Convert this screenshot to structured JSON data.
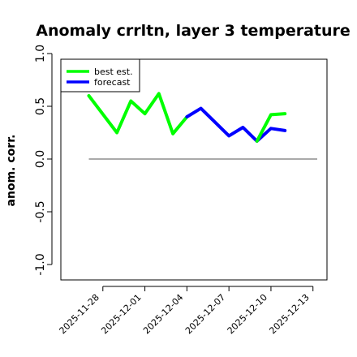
{
  "chart_data": {
    "type": "line",
    "title": "Anomaly crrltn, layer 3 temperature",
    "xlabel": "",
    "ylabel": "anom. corr.",
    "ylim": [
      -1.0,
      1.0
    ],
    "yticks": [
      "-1.0",
      "-0.5",
      "0.0",
      "0.5",
      "1.0"
    ],
    "xlim": [
      "2025-11-25",
      "2025-12-14"
    ],
    "xticks": [
      {
        "date": "2025-11-28",
        "label": "2025-11-28",
        "color": "#000000"
      },
      {
        "date": "2025-12-01",
        "label": "2025-12-01",
        "color": "#000000"
      },
      {
        "date": "2025-12-04",
        "label": "2025-12-04",
        "color": "#228B22"
      },
      {
        "date": "2025-12-07",
        "label": "2025-12-07",
        "color": "#000000"
      },
      {
        "date": "2025-12-10",
        "label": "2025-12-10",
        "color": "#000000"
      },
      {
        "date": "2025-12-13",
        "label": "2025-12-13",
        "color": "#000000"
      }
    ],
    "reference_line": 0.0,
    "legend": {
      "position": "top-left"
    },
    "series": [
      {
        "name": "best est.",
        "color": "#00ff00",
        "points": [
          {
            "x": "2025-11-27",
            "y": 0.6
          },
          {
            "x": "2025-11-29",
            "y": 0.25
          },
          {
            "x": "2025-11-30",
            "y": 0.55
          },
          {
            "x": "2025-12-01",
            "y": 0.43
          },
          {
            "x": "2025-12-02",
            "y": 0.62
          },
          {
            "x": "2025-12-03",
            "y": 0.24
          },
          {
            "x": "2025-12-04",
            "y": 0.4
          }
        ]
      },
      {
        "name": "forecast",
        "color": "#0000ff",
        "points": [
          {
            "x": "2025-12-04",
            "y": 0.4
          },
          {
            "x": "2025-12-05",
            "y": 0.48
          },
          {
            "x": "2025-12-07",
            "y": 0.22
          },
          {
            "x": "2025-12-08",
            "y": 0.3
          },
          {
            "x": "2025-12-09",
            "y": 0.17
          },
          {
            "x": "2025-12-10",
            "y": 0.29
          },
          {
            "x": "2025-12-11",
            "y": 0.27
          }
        ]
      },
      {
        "name": "",
        "color": "#00ff00",
        "points": [
          {
            "x": "2025-12-09",
            "y": 0.17
          },
          {
            "x": "2025-12-10",
            "y": 0.42
          },
          {
            "x": "2025-12-11",
            "y": 0.43
          }
        ]
      }
    ]
  }
}
